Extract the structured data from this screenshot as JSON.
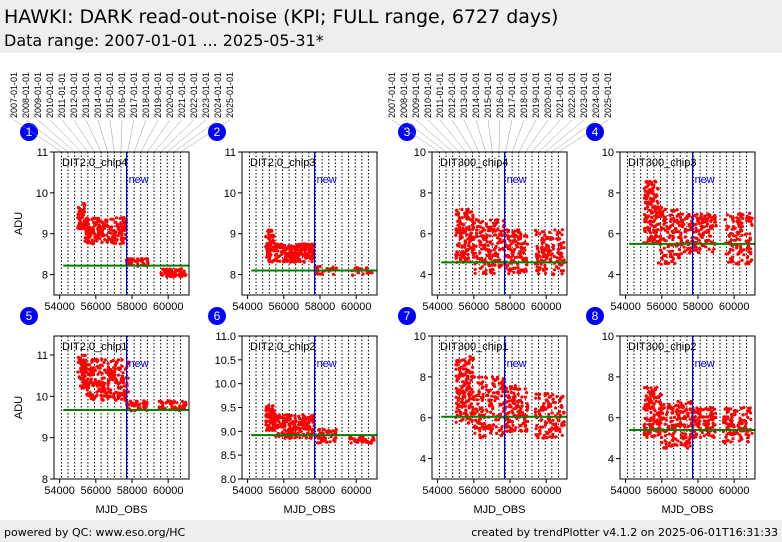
{
  "header": {
    "title": "HAWKI: DARK read-out-noise (KPI; FULL range, 6727 days)",
    "subtitle": "Data range: 2007-01-01 ... 2025-05-31*"
  },
  "footer": {
    "left": "powered by QC: www.eso.org/HC",
    "right": "created by trendPlotter v4.1.2 on 2025-06-01T16:31:33"
  },
  "colors": {
    "points": "#ff0000",
    "reference_line": "#008000",
    "new_marker": "#0000ff",
    "badge": "#0000ff",
    "header_bg": "#eeeeee"
  },
  "chart_data": {
    "type": "scatter",
    "xlabel": "MJD_OBS",
    "ylabel": "ADU",
    "xlim": [
      53690,
      61150
    ],
    "x_ticks": [
      54000,
      56000,
      58000,
      60000
    ],
    "new_marker_x": 57700,
    "new_marker_label": "new",
    "grid": "vertical dotted, yearly",
    "year_labels": [
      "2007-01-01",
      "2008-01-01",
      "2009-01-01",
      "2010-01-01",
      "2011-01-01",
      "2012-01-01",
      "2013-01-01",
      "2014-01-01",
      "2015-01-01",
      "2016-01-01",
      "2017-01-01",
      "2018-01-01",
      "2019-01-01",
      "2020-01-01",
      "2021-01-01",
      "2022-01-01",
      "2023-01-01",
      "2024-01-01",
      "2025-01-01"
    ],
    "year_mjd": [
      54101,
      54466,
      54832,
      55197,
      55562,
      55927,
      56293,
      56658,
      57023,
      57388,
      57754,
      58119,
      58484,
      58849,
      59215,
      59580,
      59945,
      60310,
      60676
    ],
    "panels": [
      {
        "badge": "1",
        "label": "DIT2.0_chip4",
        "ylim": [
          7.5,
          11
        ],
        "y_ticks": [
          "8",
          "9",
          "10",
          "11"
        ],
        "reference": 8.22,
        "clusters": [
          [
            55000,
            55400,
            9.1,
            9.75,
            60
          ],
          [
            55400,
            57700,
            8.75,
            9.4,
            200
          ],
          [
            57700,
            58000,
            8.2,
            8.4,
            30
          ],
          [
            58000,
            58900,
            8.2,
            8.4,
            25
          ],
          [
            59600,
            61000,
            7.95,
            8.15,
            70
          ]
        ]
      },
      {
        "badge": "2",
        "label": "DIT2.0_chip3",
        "ylim": [
          7.5,
          11
        ],
        "y_ticks": [
          "8",
          "9",
          "10",
          "11"
        ],
        "reference": 8.1,
        "clusters": [
          [
            55000,
            55500,
            8.3,
            9.1,
            60
          ],
          [
            55500,
            57700,
            8.3,
            8.75,
            200
          ],
          [
            57700,
            58900,
            8.0,
            8.2,
            30
          ],
          [
            59600,
            61000,
            7.95,
            8.2,
            20
          ]
        ]
      },
      {
        "badge": "3",
        "label": "DIT300_chip4",
        "ylim": [
          3,
          10
        ],
        "y_ticks": [
          "4",
          "6",
          "8",
          "10"
        ],
        "reference": 4.6,
        "clusters": [
          [
            55000,
            56000,
            4.6,
            7.2,
            140
          ],
          [
            56000,
            57700,
            4.0,
            6.7,
            160
          ],
          [
            57700,
            59000,
            4.0,
            6.2,
            120
          ],
          [
            59400,
            61000,
            4.0,
            6.2,
            130
          ]
        ]
      },
      {
        "badge": "4",
        "label": "DIT300_chip3",
        "ylim": [
          3,
          10
        ],
        "y_ticks": [
          "4",
          "6",
          "8",
          "10"
        ],
        "reference": 5.5,
        "clusters": [
          [
            55000,
            55800,
            5.5,
            8.6,
            140
          ],
          [
            55800,
            57000,
            4.5,
            7.3,
            120
          ],
          [
            57000,
            59000,
            5.0,
            7.0,
            150
          ],
          [
            59500,
            61000,
            4.5,
            7.0,
            130
          ]
        ]
      },
      {
        "badge": "5",
        "label": "DIT2.0_chip1",
        "ylim": [
          8,
          11.46
        ],
        "y_ticks": [
          "8",
          "9",
          "10",
          "11"
        ],
        "reference": 9.67,
        "clusters": [
          [
            55000,
            55500,
            10.2,
            11.0,
            70
          ],
          [
            55500,
            57800,
            9.9,
            10.9,
            220
          ],
          [
            57700,
            58900,
            9.65,
            9.9,
            40
          ],
          [
            59500,
            61000,
            9.65,
            9.9,
            50
          ]
        ]
      },
      {
        "badge": "6",
        "label": "DIT2.0_chip2",
        "ylim": [
          8,
          11
        ],
        "y_ticks": [
          "8.0",
          "8.5",
          "9.0",
          "9.5",
          "10.0",
          "10.5",
          "11.0"
        ],
        "reference": 8.92,
        "clusters": [
          [
            55000,
            55500,
            9.0,
            9.55,
            70
          ],
          [
            55500,
            57700,
            8.85,
            9.35,
            200
          ],
          [
            57700,
            58900,
            8.75,
            9.05,
            50
          ],
          [
            59600,
            61000,
            8.75,
            8.9,
            40
          ]
        ]
      },
      {
        "badge": "7",
        "label": "DIT300_chip1",
        "ylim": [
          3,
          10
        ],
        "y_ticks": [
          "4",
          "6",
          "8",
          "10"
        ],
        "reference": 6.05,
        "clusters": [
          [
            55000,
            56000,
            5.7,
            9.0,
            150
          ],
          [
            56000,
            57700,
            5.0,
            8.0,
            160
          ],
          [
            57700,
            59000,
            5.3,
            7.6,
            120
          ],
          [
            59400,
            61000,
            5.0,
            7.2,
            120
          ]
        ]
      },
      {
        "badge": "8",
        "label": "DIT300_chip2",
        "ylim": [
          3,
          10
        ],
        "y_ticks": [
          "4",
          "6",
          "8",
          "10"
        ],
        "reference": 5.4,
        "clusters": [
          [
            55000,
            56000,
            5.0,
            7.5,
            140
          ],
          [
            56000,
            57700,
            4.5,
            6.8,
            150
          ],
          [
            57700,
            59000,
            5.0,
            6.5,
            110
          ],
          [
            59400,
            61000,
            4.7,
            6.5,
            110
          ]
        ]
      }
    ]
  }
}
